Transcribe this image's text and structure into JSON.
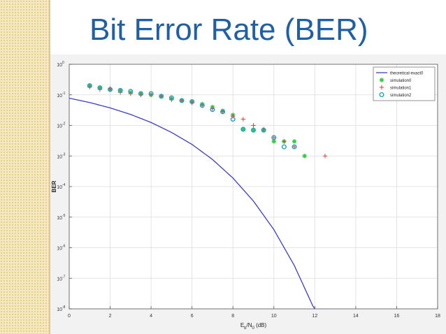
{
  "slide": {
    "title": "Bit Error Rate (BER)"
  },
  "chart_data": {
    "type": "scatter",
    "title": "",
    "ylabel": "BER",
    "xlabel_parts": {
      "main": "E",
      "sub1": "b",
      "mid": "/N",
      "sub2": "0",
      "unit": " (dB)"
    },
    "xlim": [
      0,
      18
    ],
    "ylim_log10": [
      -8,
      0
    ],
    "y_scale": "log",
    "grid": true,
    "legend_position": "top-right",
    "x_ticks": [
      "0",
      "2",
      "4",
      "6",
      "8",
      "10",
      "12",
      "14",
      "16",
      "18"
    ],
    "y_ticks": [
      {
        "base": "10",
        "exp": "0"
      },
      {
        "base": "10",
        "exp": "-1"
      },
      {
        "base": "10",
        "exp": "-2"
      },
      {
        "base": "10",
        "exp": "-3"
      },
      {
        "base": "10",
        "exp": "-4"
      },
      {
        "base": "10",
        "exp": "-5"
      },
      {
        "base": "10",
        "exp": "-6"
      },
      {
        "base": "10",
        "exp": "-7"
      },
      {
        "base": "10",
        "exp": "-8"
      }
    ],
    "series": [
      {
        "name": "theoretical-exact0",
        "kind": "line",
        "color": "#3a3fc8",
        "points": [
          [
            0,
            0.078
          ],
          [
            1,
            0.056
          ],
          [
            2,
            0.0375
          ],
          [
            3,
            0.0229
          ],
          [
            4,
            0.0125
          ],
          [
            5,
            0.0059
          ],
          [
            6,
            0.00239
          ],
          [
            7,
            0.00077
          ],
          [
            8,
            0.00019
          ],
          [
            9,
            3.36e-05
          ],
          [
            10,
            3.9e-06
          ],
          [
            11,
            2.6e-07
          ],
          [
            12,
            9e-09
          ]
        ]
      },
      {
        "name": "simulation0",
        "kind": "marker",
        "marker": "star",
        "color": "#2ecc40",
        "points": [
          [
            1,
            0.2
          ],
          [
            1.5,
            0.17
          ],
          [
            2,
            0.15
          ],
          [
            2.5,
            0.14
          ],
          [
            3,
            0.12
          ],
          [
            3.5,
            0.11
          ],
          [
            4,
            0.1
          ],
          [
            4.5,
            0.09
          ],
          [
            5,
            0.075
          ],
          [
            5.5,
            0.065
          ],
          [
            6,
            0.06
          ],
          [
            6.5,
            0.05
          ],
          [
            7,
            0.04
          ],
          [
            7.5,
            0.03
          ],
          [
            8,
            0.022
          ],
          [
            8.5,
            0.0075
          ],
          [
            9,
            0.007
          ],
          [
            9.5,
            0.007
          ],
          [
            10,
            0.003
          ],
          [
            10.5,
            0.003
          ],
          [
            11,
            0.003
          ],
          [
            11.5,
            0.001
          ]
        ]
      },
      {
        "name": "simulation1",
        "kind": "marker",
        "marker": "plus",
        "color": "#e63b3b",
        "points": [
          [
            1,
            0.18
          ],
          [
            1.5,
            0.15
          ],
          [
            2,
            0.16
          ],
          [
            2.5,
            0.12
          ],
          [
            3,
            0.11
          ],
          [
            3.5,
            0.1
          ],
          [
            4,
            0.1
          ],
          [
            4.5,
            0.09
          ],
          [
            5,
            0.07
          ],
          [
            5.5,
            0.065
          ],
          [
            6,
            0.055
          ],
          [
            6.5,
            0.045
          ],
          [
            7,
            0.035
          ],
          [
            7.5,
            0.028
          ],
          [
            8,
            0.02
          ],
          [
            8.5,
            0.016
          ],
          [
            9,
            0.01
          ],
          [
            9.5,
            0.0075
          ],
          [
            10,
            0.004
          ],
          [
            10.5,
            0.003
          ],
          [
            11,
            0.002
          ],
          [
            12.5,
            0.001
          ]
        ]
      },
      {
        "name": "simulation2",
        "kind": "marker",
        "marker": "circle",
        "color": "#1ca3c4",
        "points": [
          [
            1,
            0.2
          ],
          [
            1.5,
            0.17
          ],
          [
            2,
            0.15
          ],
          [
            2.5,
            0.14
          ],
          [
            3,
            0.13
          ],
          [
            3.5,
            0.11
          ],
          [
            4,
            0.11
          ],
          [
            4.5,
            0.09
          ],
          [
            5,
            0.08
          ],
          [
            5.5,
            0.065
          ],
          [
            6,
            0.06
          ],
          [
            6.5,
            0.045
          ],
          [
            7,
            0.033
          ],
          [
            7.5,
            0.028
          ],
          [
            8,
            0.016
          ],
          [
            8.5,
            0.0075
          ],
          [
            9,
            0.007
          ],
          [
            9.5,
            0.007
          ],
          [
            10,
            0.004
          ],
          [
            10.5,
            0.002
          ],
          [
            11,
            0.002
          ]
        ]
      }
    ]
  }
}
